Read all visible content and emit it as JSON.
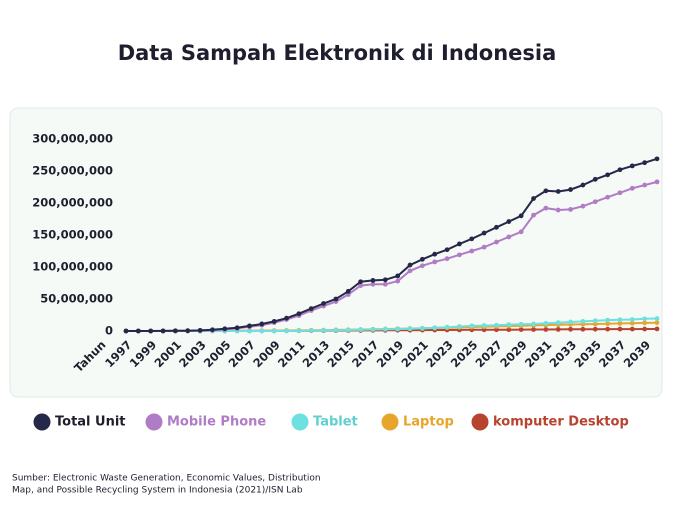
{
  "chart_data": {
    "type": "line",
    "title": "Data Sampah Elektronik di Indonesia",
    "x_label": "Tahun",
    "x": [
      1997,
      1998,
      1999,
      2000,
      2001,
      2002,
      2003,
      2004,
      2005,
      2006,
      2007,
      2008,
      2009,
      2010,
      2011,
      2012,
      2013,
      2014,
      2015,
      2016,
      2017,
      2018,
      2019,
      2020,
      2021,
      2022,
      2023,
      2024,
      2025,
      2026,
      2027,
      2028,
      2029,
      2030,
      2031,
      2032,
      2033,
      2034,
      2035,
      2036,
      2037,
      2038,
      2039,
      2040
    ],
    "xlim": [
      1997,
      2040
    ],
    "xticks": [
      1997,
      1999,
      2001,
      2003,
      2005,
      2007,
      2009,
      2011,
      2013,
      2015,
      2017,
      2019,
      2021,
      2023,
      2025,
      2027,
      2029,
      2031,
      2033,
      2035,
      2037,
      2039
    ],
    "ylim": [
      0,
      300000000
    ],
    "yticks": [
      0,
      {
        "value": 50000000,
        "label": "50,000,000"
      },
      {
        "value": 100000000,
        "label": "100,000,000"
      },
      {
        "value": 150000000,
        "label": "150,000,000"
      },
      {
        "value": 200000000,
        "label": "200,000,000"
      },
      {
        "value": 250000000,
        "label": "250,000,000"
      },
      {
        "value": 300000000,
        "label": "300,000,000"
      }
    ],
    "legend": "bottom",
    "series": [
      {
        "name": "Total Unit",
        "color": "#262847",
        "values": [
          0,
          0,
          0,
          100000,
          300000,
          500000,
          1000000,
          2000000,
          3500000,
          5000000,
          8000000,
          11000000,
          15000000,
          20000000,
          27000000,
          35000000,
          43000000,
          50000000,
          62000000,
          77000000,
          79000000,
          80000000,
          86000000,
          103000000,
          112000000,
          120000000,
          127000000,
          136000000,
          144000000,
          153000000,
          162000000,
          171000000,
          180000000,
          207000000,
          219000000,
          218000000,
          221000000,
          228000000,
          237000000,
          244000000,
          252000000,
          258000000,
          263000000,
          269000000
        ]
      },
      {
        "name": "Mobile Phone",
        "color": "#b07cc6",
        "values": [
          0,
          0,
          0,
          0,
          100000,
          300000,
          600000,
          1200000,
          2500000,
          4000000,
          6500000,
          9000000,
          13000000,
          18000000,
          24000000,
          32000000,
          39000000,
          46000000,
          57000000,
          71000000,
          73000000,
          73000000,
          78000000,
          94000000,
          102000000,
          108000000,
          113000000,
          119000000,
          125000000,
          131000000,
          139000000,
          147000000,
          155000000,
          181000000,
          192000000,
          189000000,
          190000000,
          195000000,
          202000000,
          209000000,
          216000000,
          223000000,
          228000000,
          233000000
        ]
      },
      {
        "name": "Tablet",
        "color": "#6de0e0",
        "values": [
          0,
          0,
          0,
          0,
          0,
          0,
          0,
          0,
          0,
          0,
          0,
          0,
          0,
          200000,
          500000,
          800000,
          1000000,
          1300000,
          1600000,
          2000000,
          2300000,
          2700000,
          3000000,
          3500000,
          4000000,
          5000000,
          6000000,
          7000000,
          8000000,
          8500000,
          9000000,
          10000000,
          10500000,
          11000000,
          12000000,
          13000000,
          14000000,
          15000000,
          16000000,
          17000000,
          17500000,
          18000000,
          19000000,
          19500000
        ]
      },
      {
        "name": "Laptop",
        "color": "#e8a52b",
        "values": [
          0,
          0,
          0,
          0,
          0,
          0,
          0,
          100000,
          200000,
          300000,
          400000,
          500000,
          600000,
          800000,
          1000000,
          1200000,
          1400000,
          1700000,
          2000000,
          2300000,
          2600000,
          3000000,
          3400000,
          3800000,
          4200000,
          4700000,
          5200000,
          5700000,
          6200000,
          6700000,
          7200000,
          7700000,
          8200000,
          8700000,
          9200000,
          9700000,
          10200000,
          10600000,
          11000000,
          11400000,
          11800000,
          12200000,
          12600000,
          13000000
        ]
      },
      {
        "name": "komputer Desktop",
        "color": "#b8432e",
        "values": [
          0,
          0,
          0,
          0,
          0,
          0,
          0,
          50000,
          100000,
          150000,
          200000,
          250000,
          300000,
          350000,
          400000,
          500000,
          600000,
          700000,
          800000,
          900000,
          1000000,
          1100000,
          1200000,
          1300000,
          1400000,
          1500000,
          1600000,
          1700000,
          1800000,
          1900000,
          2000000,
          2100000,
          2200000,
          2300000,
          2400000,
          2500000,
          2600000,
          2700000,
          2800000,
          2900000,
          3000000,
          3000000,
          3100000,
          3200000
        ]
      }
    ],
    "source": [
      "Sumber: Electronic Waste Generation, Economic Values, Distribution",
      "Map, and Possible Recycling System in Indonesia (2021)/ISN Lab"
    ]
  }
}
